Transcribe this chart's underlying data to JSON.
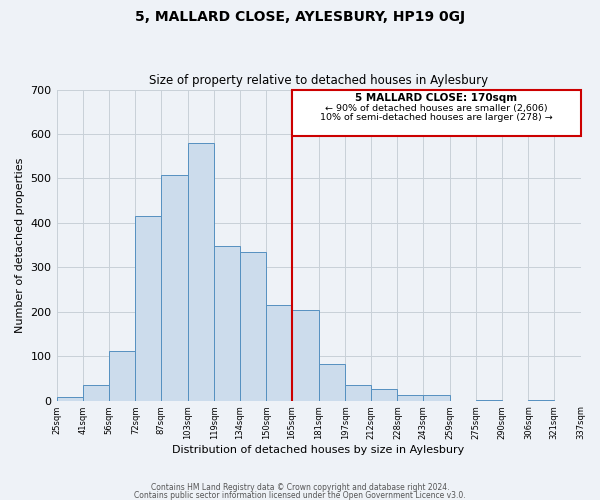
{
  "title": "5, MALLARD CLOSE, AYLESBURY, HP19 0GJ",
  "subtitle": "Size of property relative to detached houses in Aylesbury",
  "xlabel": "Distribution of detached houses by size in Aylesbury",
  "ylabel": "Number of detached properties",
  "bar_color": "#ccdcec",
  "bar_edge_color": "#5590c0",
  "grid_color": "#c8d0d8",
  "background_color": "#eef2f7",
  "vline_color": "#cc0000",
  "vline_x": 165,
  "annotation_title": "5 MALLARD CLOSE: 170sqm",
  "annotation_line1": "← 90% of detached houses are smaller (2,606)",
  "annotation_line2": "10% of semi-detached houses are larger (278) →",
  "bin_edges": [
    25,
    41,
    56,
    72,
    87,
    103,
    119,
    134,
    150,
    165,
    181,
    197,
    212,
    228,
    243,
    259,
    275,
    290,
    306,
    321,
    337
  ],
  "bin_heights": [
    8,
    36,
    112,
    415,
    507,
    579,
    347,
    335,
    214,
    204,
    83,
    36,
    25,
    13,
    13,
    0,
    2,
    0,
    2,
    0
  ],
  "tick_labels": [
    "25sqm",
    "41sqm",
    "56sqm",
    "72sqm",
    "87sqm",
    "103sqm",
    "119sqm",
    "134sqm",
    "150sqm",
    "165sqm",
    "181sqm",
    "197sqm",
    "212sqm",
    "228sqm",
    "243sqm",
    "259sqm",
    "275sqm",
    "290sqm",
    "306sqm",
    "321sqm",
    "337sqm"
  ],
  "ylim": [
    0,
    700
  ],
  "yticks": [
    0,
    100,
    200,
    300,
    400,
    500,
    600,
    700
  ],
  "footer1": "Contains HM Land Registry data © Crown copyright and database right 2024.",
  "footer2": "Contains public sector information licensed under the Open Government Licence v3.0."
}
